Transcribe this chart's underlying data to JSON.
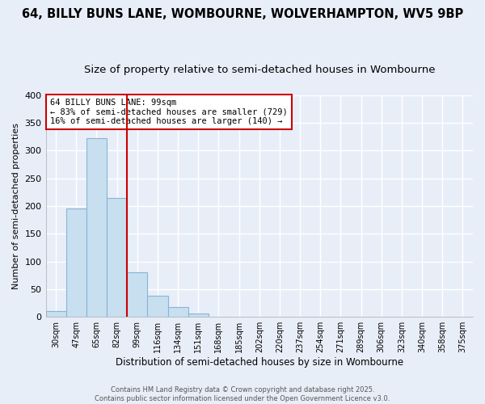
{
  "title_line1": "64, BILLY BUNS LANE, WOMBOURNE, WOLVERHAMPTON, WV5 9BP",
  "title_line2": "Size of property relative to semi-detached houses in Wombourne",
  "xlabel": "Distribution of semi-detached houses by size in Wombourne",
  "ylabel": "Number of semi-detached properties",
  "bin_labels": [
    "30sqm",
    "47sqm",
    "65sqm",
    "82sqm",
    "99sqm",
    "116sqm",
    "134sqm",
    "151sqm",
    "168sqm",
    "185sqm",
    "202sqm",
    "220sqm",
    "237sqm",
    "254sqm",
    "271sqm",
    "289sqm",
    "306sqm",
    "323sqm",
    "340sqm",
    "358sqm",
    "375sqm"
  ],
  "bar_values": [
    10,
    196,
    322,
    214,
    80,
    38,
    18,
    6,
    1,
    0,
    0,
    0,
    0,
    0,
    0,
    0,
    0,
    0,
    0,
    0,
    1
  ],
  "bar_color": "#c8dff0",
  "bar_edge_color": "#8ab4d4",
  "vline_color": "#cc0000",
  "annotation_title": "64 BILLY BUNS LANE: 99sqm",
  "annotation_line1": "← 83% of semi-detached houses are smaller (729)",
  "annotation_line2": "16% of semi-detached houses are larger (140) →",
  "annotation_box_color": "#ffffff",
  "annotation_box_edge": "#cc0000",
  "ylim": [
    0,
    400
  ],
  "yticks": [
    0,
    50,
    100,
    150,
    200,
    250,
    300,
    350,
    400
  ],
  "footer_line1": "Contains HM Land Registry data © Crown copyright and database right 2025.",
  "footer_line2": "Contains public sector information licensed under the Open Government Licence v3.0.",
  "bg_color": "#e8eef8",
  "grid_color": "#ffffff",
  "title_fontsize": 10.5,
  "subtitle_fontsize": 9.5
}
